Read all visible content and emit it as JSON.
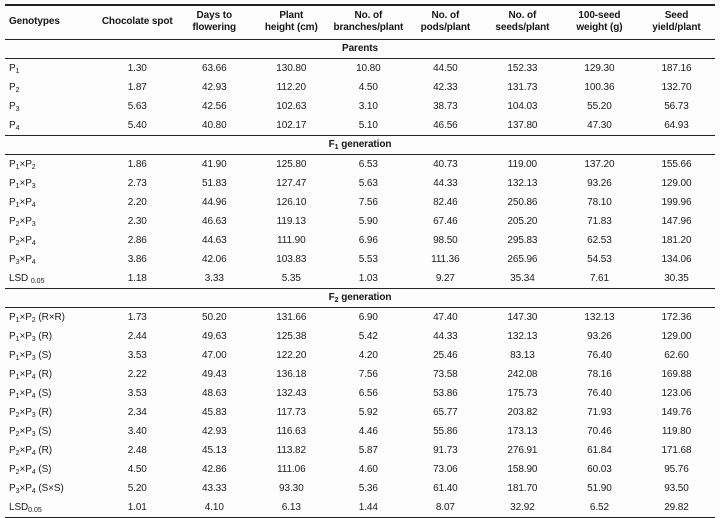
{
  "table": {
    "columns": [
      "Genotypes",
      "Chocolate spot",
      "Days to\nflowering",
      "Plant\nheight (cm)",
      "No. of\nbranches/plant",
      "No. of\npods/plant",
      "No. of\nseeds/plant",
      "100-seed\nweight (g)",
      "Seed\nyield/plant"
    ],
    "sections": [
      {
        "title": "Parents",
        "rows": [
          {
            "genotype": "P~1~",
            "values": [
              "1.30",
              "63.66",
              "130.80",
              "10.80",
              "44.50",
              "152.33",
              "129.30",
              "187.16"
            ]
          },
          {
            "genotype": "P~2~",
            "values": [
              "1.87",
              "42.93",
              "112.20",
              "4.50",
              "42.33",
              "131.73",
              "100.36",
              "132.70"
            ]
          },
          {
            "genotype": "P~3~",
            "values": [
              "5.63",
              "42.56",
              "102.63",
              "3.10",
              "38.73",
              "104.03",
              "55.20",
              "56.73"
            ]
          },
          {
            "genotype": "P~4~",
            "values": [
              "5.40",
              "40.80",
              "102.17",
              "5.10",
              "46.56",
              "137.80",
              "47.30",
              "64.93"
            ]
          }
        ]
      },
      {
        "title": "F~1~ generation",
        "rows": [
          {
            "genotype": "P~1~×P~2~",
            "values": [
              "1.86",
              "41.90",
              "125.80",
              "6.53",
              "40.73",
              "119.00",
              "137.20",
              "155.66"
            ]
          },
          {
            "genotype": "P~1~×P~3~",
            "values": [
              "2.73",
              "51.83",
              "127.47",
              "5.63",
              "44.33",
              "132.13",
              "93.26",
              "129.00"
            ]
          },
          {
            "genotype": "P~1~×P~4~",
            "values": [
              "2.20",
              "44.96",
              "126.10",
              "7.56",
              "82.46",
              "250.86",
              "78.10",
              "199.96"
            ]
          },
          {
            "genotype": "P~2~×P~3~",
            "values": [
              "2.30",
              "46.63",
              "119.13",
              "5.90",
              "67.46",
              "205.20",
              "71.83",
              "147.96"
            ]
          },
          {
            "genotype": "P~2~×P~4~",
            "values": [
              "2.86",
              "44.63",
              "111.90",
              "6.96",
              "98.50",
              "295.83",
              "62.53",
              "181.20"
            ]
          },
          {
            "genotype": "P~3~×P~4~",
            "values": [
              "3.86",
              "42.06",
              "103.83",
              "5.53",
              "111.36",
              "265.96",
              "54.53",
              "134.06"
            ]
          },
          {
            "genotype": "LSD ~0.05~",
            "values": [
              "1.18",
              "3.33",
              "5.35",
              "1.03",
              "9.27",
              "35.34",
              "7.61",
              "30.35"
            ]
          }
        ]
      },
      {
        "title": "F~2~ generation",
        "rows": [
          {
            "genotype": "P~1~×P~2~ (R×R)",
            "values": [
              "1.73",
              "50.20",
              "131.66",
              "6.90",
              "47.40",
              "147.30",
              "132.13",
              "172.36"
            ]
          },
          {
            "genotype": "P~1~×P~3~ (R)",
            "values": [
              "2.44",
              "49.63",
              "125.38",
              "5.42",
              "44.33",
              "132.13",
              "93.26",
              "129.00"
            ]
          },
          {
            "genotype": "P~1~×P~3~ (S)",
            "values": [
              "3.53",
              "47.00",
              "122.20",
              "4.20",
              "25.46",
              "83.13",
              "76.40",
              "62.60"
            ]
          },
          {
            "genotype": "P~1~×P~4~ (R)",
            "values": [
              "2.22",
              "49.43",
              "136.18",
              "7.56",
              "73.58",
              "242.08",
              "78.16",
              "169.88"
            ]
          },
          {
            "genotype": "P~1~×P~4~ (S)",
            "values": [
              "3.53",
              "48.63",
              "132.43",
              "6.56",
              "53.86",
              "175.73",
              "76.40",
              "123.06"
            ]
          },
          {
            "genotype": "P~2~×P~3~ (R)",
            "values": [
              "2.34",
              "45.83",
              "117.73",
              "5.92",
              "65.77",
              "203.82",
              "71.93",
              "149.76"
            ]
          },
          {
            "genotype": "P~2~×P~3~ (S)",
            "values": [
              "3.40",
              "42.93",
              "116.63",
              "4.46",
              "55.86",
              "173.13",
              "70.46",
              "119.80"
            ]
          },
          {
            "genotype": "P~2~×P~4~ (R)",
            "values": [
              "2.48",
              "45.13",
              "113.82",
              "5.87",
              "91.73",
              "276.91",
              "61.84",
              "171.68"
            ]
          },
          {
            "genotype": "P~2~×P~4~ (S)",
            "values": [
              "4.50",
              "42.86",
              "111.06",
              "4.60",
              "73.06",
              "158.90",
              "60.03",
              "95.76"
            ]
          },
          {
            "genotype": "P~3~×P~4~ (S×S)",
            "values": [
              "5.20",
              "43.33",
              "93.30",
              "5.36",
              "61.40",
              "181.70",
              "51.90",
              "93.50"
            ]
          },
          {
            "genotype": "LSD~0.05~",
            "values": [
              "1.01",
              "4.10",
              "6.13",
              "1.44",
              "8.07",
              "32.92",
              "6.52",
              "29.82"
            ]
          }
        ]
      }
    ]
  }
}
